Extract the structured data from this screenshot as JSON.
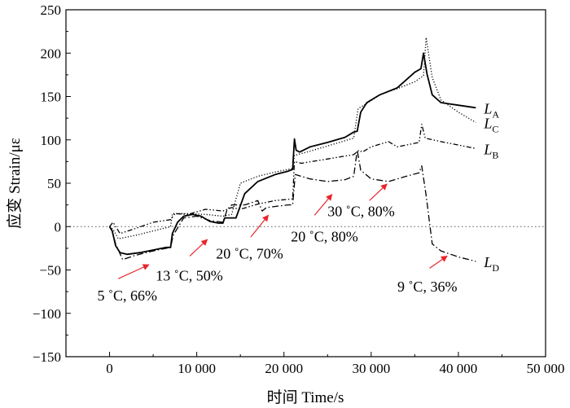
{
  "chart_data": {
    "type": "line",
    "xlabel": "时间  Time/s",
    "ylabel": "应变  Strain/με",
    "xlim": [
      -5000,
      50000
    ],
    "ylim": [
      -150,
      250
    ],
    "xticks": [
      0,
      10000,
      20000,
      30000,
      40000,
      50000
    ],
    "xtick_labels": [
      "0",
      "10 000",
      "20 000",
      "30 000",
      "40 000",
      "50 000"
    ],
    "yticks": [
      -150,
      -100,
      -50,
      0,
      50,
      100,
      150,
      200,
      250
    ],
    "ytick_labels": [
      "−150",
      "−100",
      "−50",
      "0",
      "50",
      "100",
      "150",
      "200",
      "250"
    ],
    "zero_reference_line": true,
    "colors": {
      "series": "#000000",
      "annotation_arrow": "#e8262b",
      "reference": "#555555"
    },
    "series": [
      {
        "name": "LA",
        "label_main": "L",
        "label_sub": "A",
        "style": "solid",
        "x": [
          0,
          300,
          700,
          1200,
          2000,
          3500,
          5000,
          6500,
          7000,
          7200,
          7800,
          8500,
          9500,
          10500,
          11500,
          12500,
          13000,
          13200,
          13800,
          14500,
          15500,
          17000,
          19000,
          20500,
          21000,
          21200,
          21400,
          21800,
          23000,
          25000,
          27000,
          28000,
          28400,
          28800,
          29500,
          31000,
          33000,
          35000,
          35700,
          36000,
          36400,
          37000,
          38000,
          40000,
          42000
        ],
        "y": [
          0,
          -5,
          -22,
          -30,
          -32,
          -30,
          -27,
          -24,
          -24,
          -8,
          5,
          12,
          14,
          12,
          6,
          4,
          4,
          10,
          10,
          10,
          38,
          52,
          60,
          64,
          66,
          101,
          88,
          86,
          92,
          97,
          103,
          109,
          110,
          132,
          143,
          152,
          160,
          178,
          182,
          200,
          176,
          152,
          143,
          140,
          137
        ]
      },
      {
        "name": "LB",
        "label_main": "L",
        "label_sub": "B",
        "style": "dash-dot-dot",
        "x": [
          0,
          400,
          1200,
          3000,
          5000,
          7000,
          7500,
          9000,
          11000,
          13000,
          14000,
          15000,
          17000,
          19000,
          21000,
          21200,
          22000,
          25000,
          28000,
          28600,
          29000,
          30000,
          32000,
          33000,
          34000,
          35500,
          35800,
          36200,
          38000,
          40000,
          42000
        ],
        "y": [
          0,
          5,
          -8,
          -2,
          5,
          8,
          15,
          14,
          20,
          18,
          22,
          20,
          26,
          30,
          32,
          75,
          73,
          78,
          83,
          88,
          86,
          92,
          98,
          92,
          94,
          97,
          118,
          102,
          98,
          94,
          90
        ]
      },
      {
        "name": "LC",
        "label_main": "L",
        "label_sub": "C",
        "style": "dotted",
        "x": [
          0,
          400,
          1000,
          3000,
          5000,
          7000,
          7200,
          9000,
          11000,
          13000,
          14000,
          15000,
          17000,
          19000,
          21000,
          21200,
          23000,
          25000,
          28000,
          28500,
          29500,
          31000,
          33000,
          35000,
          36000,
          36300,
          37000,
          38000,
          40000,
          42000
        ],
        "y": [
          0,
          -3,
          -14,
          -10,
          -5,
          0,
          15,
          15,
          14,
          12,
          14,
          50,
          58,
          63,
          67,
          82,
          87,
          93,
          102,
          136,
          142,
          152,
          159,
          167,
          174,
          218,
          172,
          146,
          132,
          120
        ]
      },
      {
        "name": "LD",
        "label_main": "L",
        "label_sub": "D",
        "style": "dash-dot",
        "x": [
          0,
          300,
          700,
          1500,
          3000,
          5000,
          7000,
          7300,
          8500,
          10000,
          11500,
          13000,
          13500,
          14000,
          15500,
          17000,
          17500,
          18000,
          20500,
          21000,
          21300,
          23000,
          25000,
          27000,
          28000,
          28400,
          28800,
          30000,
          32000,
          34000,
          35500,
          35800,
          36300,
          37000,
          38000,
          40000,
          42000
        ],
        "y": [
          0,
          -5,
          -20,
          -38,
          -33,
          -28,
          -24,
          -10,
          10,
          12,
          7,
          5,
          20,
          25,
          25,
          30,
          18,
          22,
          25,
          25,
          60,
          55,
          52,
          54,
          58,
          88,
          65,
          55,
          52,
          58,
          62,
          70,
          36,
          -20,
          -28,
          -35,
          -40
        ]
      }
    ],
    "annotations": [
      {
        "text": "5 ˚C, 66%",
        "label_x": -1400,
        "label_y": -85,
        "arrow_from": [
          1000,
          -60
        ],
        "arrow_to": [
          4500,
          -44
        ]
      },
      {
        "text": "13 ˚C, 50%",
        "label_x": 5300,
        "label_y": -62,
        "arrow_from": [
          9200,
          -34
        ],
        "arrow_to": [
          11200,
          -15
        ]
      },
      {
        "text": "20 ˚C, 70%",
        "label_x": 12200,
        "label_y": -37,
        "arrow_from": [
          16200,
          -12
        ],
        "arrow_to": [
          18200,
          13
        ]
      },
      {
        "text": "20 ˚C, 80%",
        "label_x": 20800,
        "label_y": -17,
        "arrow_from": [
          23500,
          13
        ],
        "arrow_to": [
          25500,
          37
        ]
      },
      {
        "text": "30 ˚C, 80%",
        "label_x": 25000,
        "label_y": 12,
        "arrow_from": [
          29800,
          30
        ],
        "arrow_to": [
          31800,
          49
        ]
      },
      {
        "text": "9 ˚C, 36%",
        "label_x": 33000,
        "label_y": -75,
        "arrow_from": [
          36700,
          -48
        ],
        "arrow_to": [
          38700,
          -34
        ]
      }
    ]
  }
}
